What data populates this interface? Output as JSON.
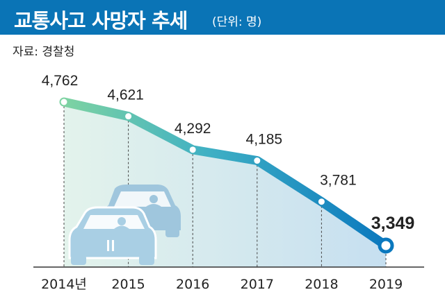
{
  "header": {
    "title": "교통사고 사망자 추세",
    "unit": "(단위: 명)"
  },
  "source": "자료: 경찰청",
  "colors": {
    "header_bg": "#0a74b6",
    "line_start": "#7ed3a2",
    "line_end": "#0a78be",
    "fill": "#cfe6ec",
    "car": "#9fc6dd"
  },
  "chart_data": {
    "type": "line",
    "categories": [
      "2014년",
      "2015",
      "2016",
      "2017",
      "2018",
      "2019"
    ],
    "values": [
      4762,
      4621,
      4292,
      4185,
      3781,
      3349
    ],
    "value_labels": [
      "4,762",
      "4,621",
      "4,292",
      "4,185",
      "3,781",
      "3,349"
    ],
    "highlight_index": 5,
    "title": "교통사고 사망자 추세",
    "xlabel": "",
    "ylabel": "",
    "grid": false,
    "icons": [
      "car-icon",
      "car-icon"
    ]
  }
}
